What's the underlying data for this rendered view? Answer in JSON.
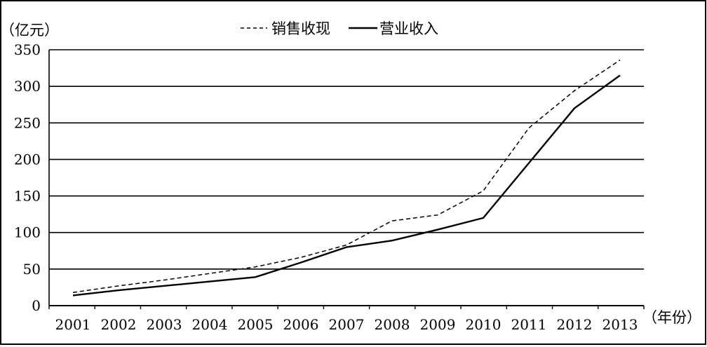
{
  "chart_data": {
    "type": "line",
    "ylabel": "（亿元）",
    "xlabel": "（年份）",
    "categories": [
      "2001",
      "2002",
      "2003",
      "2004",
      "2005",
      "2006",
      "2007",
      "2008",
      "2009",
      "2010",
      "2011",
      "2012",
      "2013"
    ],
    "ylim": [
      0,
      350
    ],
    "yticks": [
      0,
      50,
      100,
      150,
      200,
      250,
      300,
      350
    ],
    "grid": true,
    "legend_position": "top-center",
    "series": [
      {
        "name": "销售收现",
        "style": "dashed",
        "color": "#000000",
        "values": [
          18,
          27,
          35,
          44,
          53,
          66,
          83,
          116,
          124,
          157,
          243,
          294,
          336
        ]
      },
      {
        "name": "营业收入",
        "style": "solid",
        "color": "#000000",
        "values": [
          14,
          21,
          27,
          33,
          39,
          59,
          80,
          89,
          104,
          120,
          195,
          270,
          315
        ]
      }
    ]
  }
}
